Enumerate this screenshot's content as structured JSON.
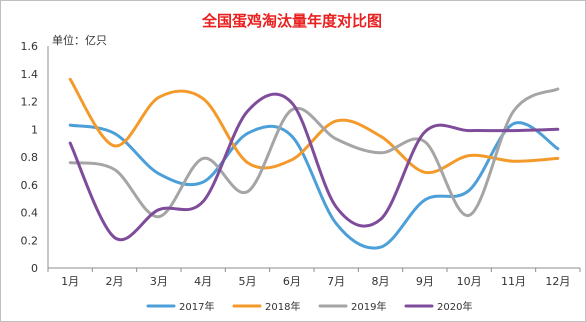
{
  "colors": {
    "title": "#e8201f",
    "axis": "#8c8c8c",
    "border": "#bfbfbf"
  },
  "chart_data": {
    "type": "line",
    "title": "全国蛋鸡淘汰量年度对比图",
    "unit_label": "单位：亿只",
    "categories": [
      "1月",
      "2月",
      "3月",
      "4月",
      "5月",
      "6月",
      "7月",
      "8月",
      "9月",
      "10月",
      "11月",
      "12月"
    ],
    "ylim": [
      0,
      1.6
    ],
    "yticks": [
      0,
      0.2,
      0.4,
      0.6,
      0.8,
      1,
      1.2,
      1.4,
      1.6
    ],
    "ytick_labels": [
      "0",
      "0.2",
      "0.4",
      "0.6",
      "0.8",
      "1",
      "1.2",
      "1.4",
      "1.6"
    ],
    "grid": false,
    "smooth": true,
    "legend_position": "bottom",
    "series": [
      {
        "name": "2017年",
        "color": "#4c9fd8",
        "values": [
          1.03,
          0.97,
          0.68,
          0.62,
          0.97,
          0.95,
          0.32,
          0.15,
          0.49,
          0.56,
          1.04,
          0.86
        ]
      },
      {
        "name": "2018年",
        "color": "#f39a2b",
        "values": [
          1.36,
          0.88,
          1.23,
          1.22,
          0.76,
          0.78,
          1.06,
          0.95,
          0.69,
          0.81,
          0.77,
          0.79
        ]
      },
      {
        "name": "2019年",
        "color": "#a5a5a5",
        "values": [
          0.76,
          0.71,
          0.37,
          0.79,
          0.55,
          1.14,
          0.93,
          0.83,
          0.91,
          0.38,
          1.13,
          1.29
        ]
      },
      {
        "name": "2020年",
        "color": "#7e4c9b",
        "values": [
          0.9,
          0.22,
          0.42,
          0.48,
          1.13,
          1.19,
          0.44,
          0.35,
          0.98,
          0.99,
          0.99,
          1.0
        ]
      }
    ]
  }
}
